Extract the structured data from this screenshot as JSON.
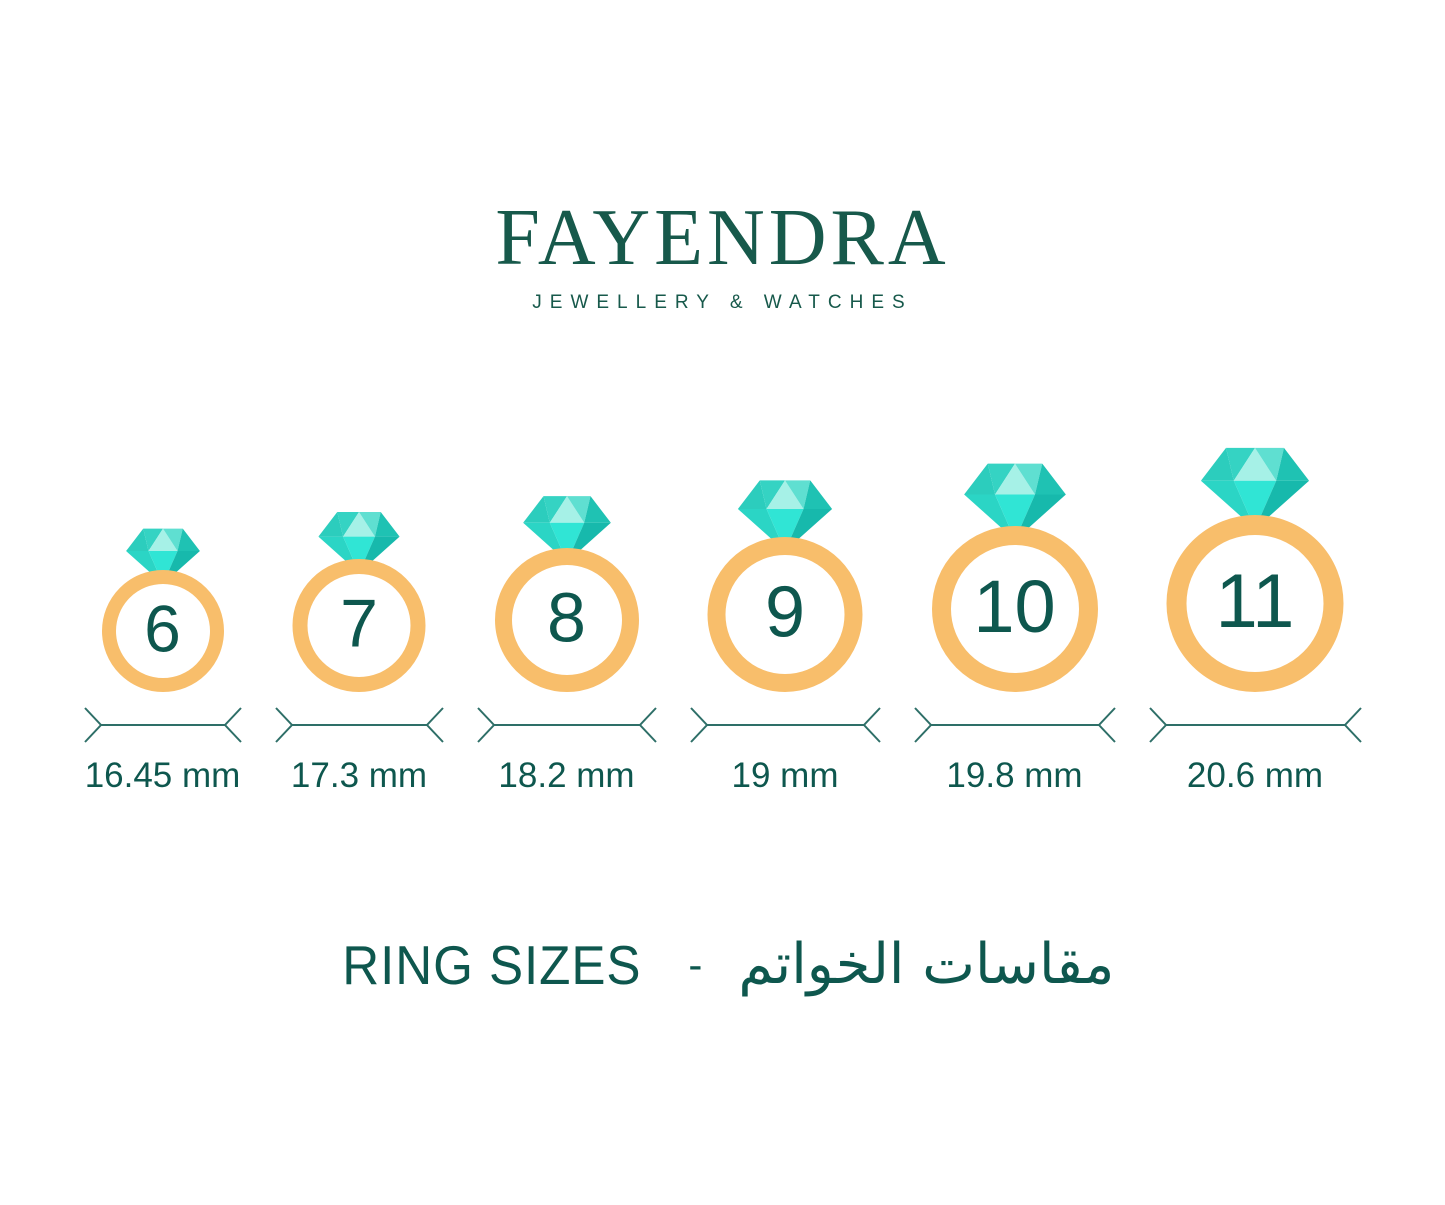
{
  "brand": {
    "name": "FAYENDRA",
    "tagline": "JEWELLERY & WATCHES"
  },
  "rings": [
    {
      "size": "6",
      "diameter": "16.45 mm"
    },
    {
      "size": "7",
      "diameter": "17.3 mm"
    },
    {
      "size": "8",
      "diameter": "18.2 mm"
    },
    {
      "size": "9",
      "diameter": "19 mm"
    },
    {
      "size": "10",
      "diameter": "19.8 mm"
    },
    {
      "size": "11",
      "diameter": "20.6 mm"
    }
  ],
  "footer": {
    "title_latin": "RING SIZES",
    "separator": "-",
    "title_arabic": "مقاسات الخواتم"
  },
  "colors": {
    "brand_green": "#17594B",
    "text_green": "#0E574E",
    "band_gold": "#F8BE6B",
    "arrow_teal": "#2E6F68",
    "diamond_facets": {
      "crown_outer_left": "#2CCDBD",
      "crown_inner_left": "#35D3C3",
      "crown_center": "#A6F1E7",
      "crown_inner_right": "#5FDFD1",
      "crown_outer_right": "#1FC2B3",
      "pavilion_left": "#2BD5C5",
      "pavilion_center": "#30E5D5",
      "pavilion_right": "#17B9AC"
    }
  }
}
